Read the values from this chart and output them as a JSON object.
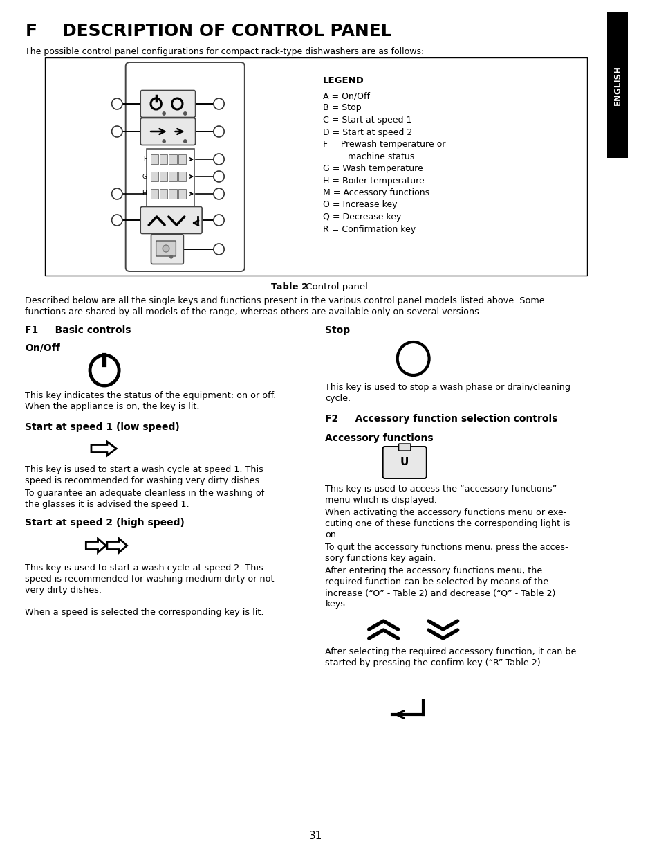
{
  "title_f": "F",
  "title_rest": "    DESCRIPTION OF CONTROL PANEL",
  "subtitle": "The possible control panel configurations for compact rack-type dishwashers are as follows:",
  "table_caption_bold": "Table 2",
  "table_caption_normal": " Control panel",
  "desc_para_line1": "Described below are all the single keys and functions present in the various control panel models listed above. Some",
  "desc_para_line2": "functions are shared by all models of the range, whereas others are available only on several versions.",
  "legend_title": "LEGEND",
  "legend_items": [
    "A = On/Off",
    "B = Stop",
    "C = Start at speed 1",
    "D = Start at speed 2",
    "F = Prewash temperature or",
    "         machine status",
    "G = Wash temperature",
    "H = Boiler temperature",
    "M = Accessory functions",
    "O = Increase key",
    "Q = Decrease key",
    "R = Confirmation key"
  ],
  "f1_title": "F1     Basic controls",
  "f2_title": "F2     Accessory function selection controls",
  "onoff_title": "On/Off",
  "onoff_desc_line1": "This key indicates the status of the equipment: on or off.",
  "onoff_desc_line2": "When the appliance is on, the key is lit.",
  "stop_title": "Stop",
  "stop_desc_line1": "This key is used to stop a wash phase or drain/cleaning",
  "stop_desc_line2": "cycle.",
  "speed1_title": "Start at speed 1 (low speed)",
  "speed1_desc_line1": "This key is used to start a wash cycle at speed 1. This",
  "speed1_desc_line2": "speed is recommended for washing very dirty dishes.",
  "speed1_desc_line3": "To guarantee an adequate cleanless in the washing of",
  "speed1_desc_line4": "the glasses it is advised the speed 1.",
  "speed2_title": "Start at speed 2 (high speed)",
  "speed2_desc_line1": "This key is used to start a wash cycle at speed 2. This",
  "speed2_desc_line2": "speed is recommended for washing medium dirty or not",
  "speed2_desc_line3": "very dirty dishes.",
  "speed_note": "When a speed is selected the corresponding key is lit.",
  "acc_func_title": "Accessory functions",
  "acc_func_desc1_line1": "This key is used to access the “accessory functions”",
  "acc_func_desc1_line2": "menu which is displayed.",
  "acc_func_desc2_line1": "When activating the accessory functions menu or exe-",
  "acc_func_desc2_line2": "cuting one of these functions the corresponding light is",
  "acc_func_desc2_line3": "on.",
  "acc_func_desc3_line1": "To quit the accessory functions menu, press the acces-",
  "acc_func_desc3_line2": "sory functions key again.",
  "acc_func_desc4_line1": "After entering the accessory functions menu, the",
  "acc_func_desc4_line2": "required function can be selected by means of the",
  "acc_func_desc4_line3": "increase (“O” - Table 2) and decrease (“Q” - Table 2)",
  "acc_func_desc4_line4": "keys.",
  "acc_func_desc5_line1": "After selecting the required accessory function, it can be",
  "acc_func_desc5_line2": "started by pressing the confirm key (“R” Table 2).",
  "page_number": "31",
  "english_sidebar": "ENGLISH",
  "bg_color": "#ffffff",
  "text_color": "#000000",
  "sidebar_bg": "#000000",
  "sidebar_text": "#ffffff"
}
